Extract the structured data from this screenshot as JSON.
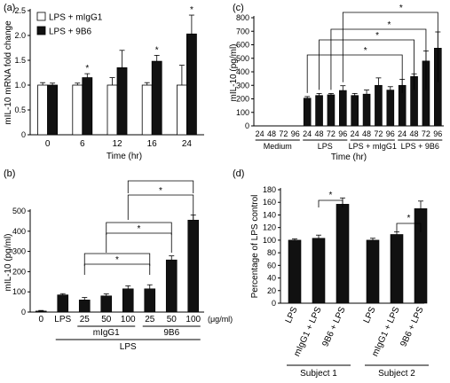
{
  "chart_data": [
    {
      "panel": "(a)",
      "type": "bar",
      "ylabel": "mIL-10 mRNA fold change",
      "xlabel": "Time (hr)",
      "ylim": [
        0,
        2.5
      ],
      "yticks": [
        "0",
        "0.5",
        "1.0",
        "1.5",
        "2.0",
        "2.5"
      ],
      "categories": [
        "0",
        "6",
        "12",
        "16",
        "24"
      ],
      "series": [
        {
          "name": "LPS + mIgG1",
          "fill": "#ffffff",
          "values": [
            1.0,
            1.0,
            1.0,
            1.0,
            1.0
          ],
          "errors": [
            0.05,
            0.04,
            0.15,
            0.05,
            0.4
          ]
        },
        {
          "name": "LPS + 9B6",
          "fill": "#111111",
          "values": [
            1.0,
            1.15,
            1.35,
            1.48,
            2.03
          ],
          "errors": [
            0.04,
            0.08,
            0.35,
            0.12,
            0.38
          ]
        }
      ],
      "significance": [
        "",
        "*",
        "",
        "*",
        "*"
      ]
    },
    {
      "panel": "(b)",
      "type": "bar",
      "ylabel": "mIL-10 (pg/ml)",
      "ylim": [
        0,
        500
      ],
      "yticks": [
        "0",
        "100",
        "200",
        "300",
        "400",
        "500"
      ],
      "categories": [
        "0",
        "LPS",
        "25",
        "50",
        "100",
        "25",
        "50",
        "100"
      ],
      "values": [
        5,
        85,
        60,
        80,
        115,
        115,
        258,
        455
      ],
      "errors": [
        3,
        6,
        12,
        10,
        15,
        20,
        20,
        25
      ],
      "unit_label": "(μg/ml)",
      "group_labels": [
        "mIgG1",
        "9B6"
      ],
      "bottom_label": "LPS",
      "significance_star": "*"
    },
    {
      "panel": "(c)",
      "type": "bar",
      "ylabel": "mIL-10 (pg/ml)",
      "xlabel": "Time (hr)",
      "ylim": [
        0,
        800
      ],
      "yticks": [
        "0",
        "100",
        "200",
        "300",
        "400",
        "500",
        "600",
        "700",
        "800"
      ],
      "categories": [
        "24",
        "48",
        "72",
        "96",
        "24",
        "48",
        "72",
        "96",
        "24",
        "48",
        "72",
        "96",
        "24",
        "48",
        "72",
        "96"
      ],
      "values": [
        0,
        0,
        0,
        0,
        205,
        225,
        230,
        262,
        225,
        235,
        300,
        265,
        300,
        365,
        480,
        575
      ],
      "errors": [
        0,
        0,
        0,
        0,
        12,
        15,
        10,
        35,
        15,
        30,
        55,
        25,
        45,
        20,
        75,
        120
      ],
      "group_labels": [
        "Medium",
        "LPS",
        "LPS + mIgG1",
        "LPS + 9B6"
      ],
      "significance_star": "*"
    },
    {
      "panel": "(d)",
      "type": "bar",
      "ylabel": "Percentage of LPS control",
      "ylim": [
        0,
        180
      ],
      "yticks": [
        "0",
        "20",
        "40",
        "60",
        "80",
        "100",
        "120",
        "140",
        "160",
        "180"
      ],
      "categories": [
        "LPS",
        "mIgG1 + LPS",
        "9B6 + LPS",
        "LPS",
        "mIgG1 + LPS",
        "9B6 + LPS"
      ],
      "values": [
        100,
        103,
        157,
        100,
        109,
        150
      ],
      "errors": [
        2,
        5,
        10,
        3,
        4,
        12
      ],
      "group_labels": [
        "Subject 1",
        "Subject 2"
      ],
      "significance_star": "*"
    }
  ]
}
